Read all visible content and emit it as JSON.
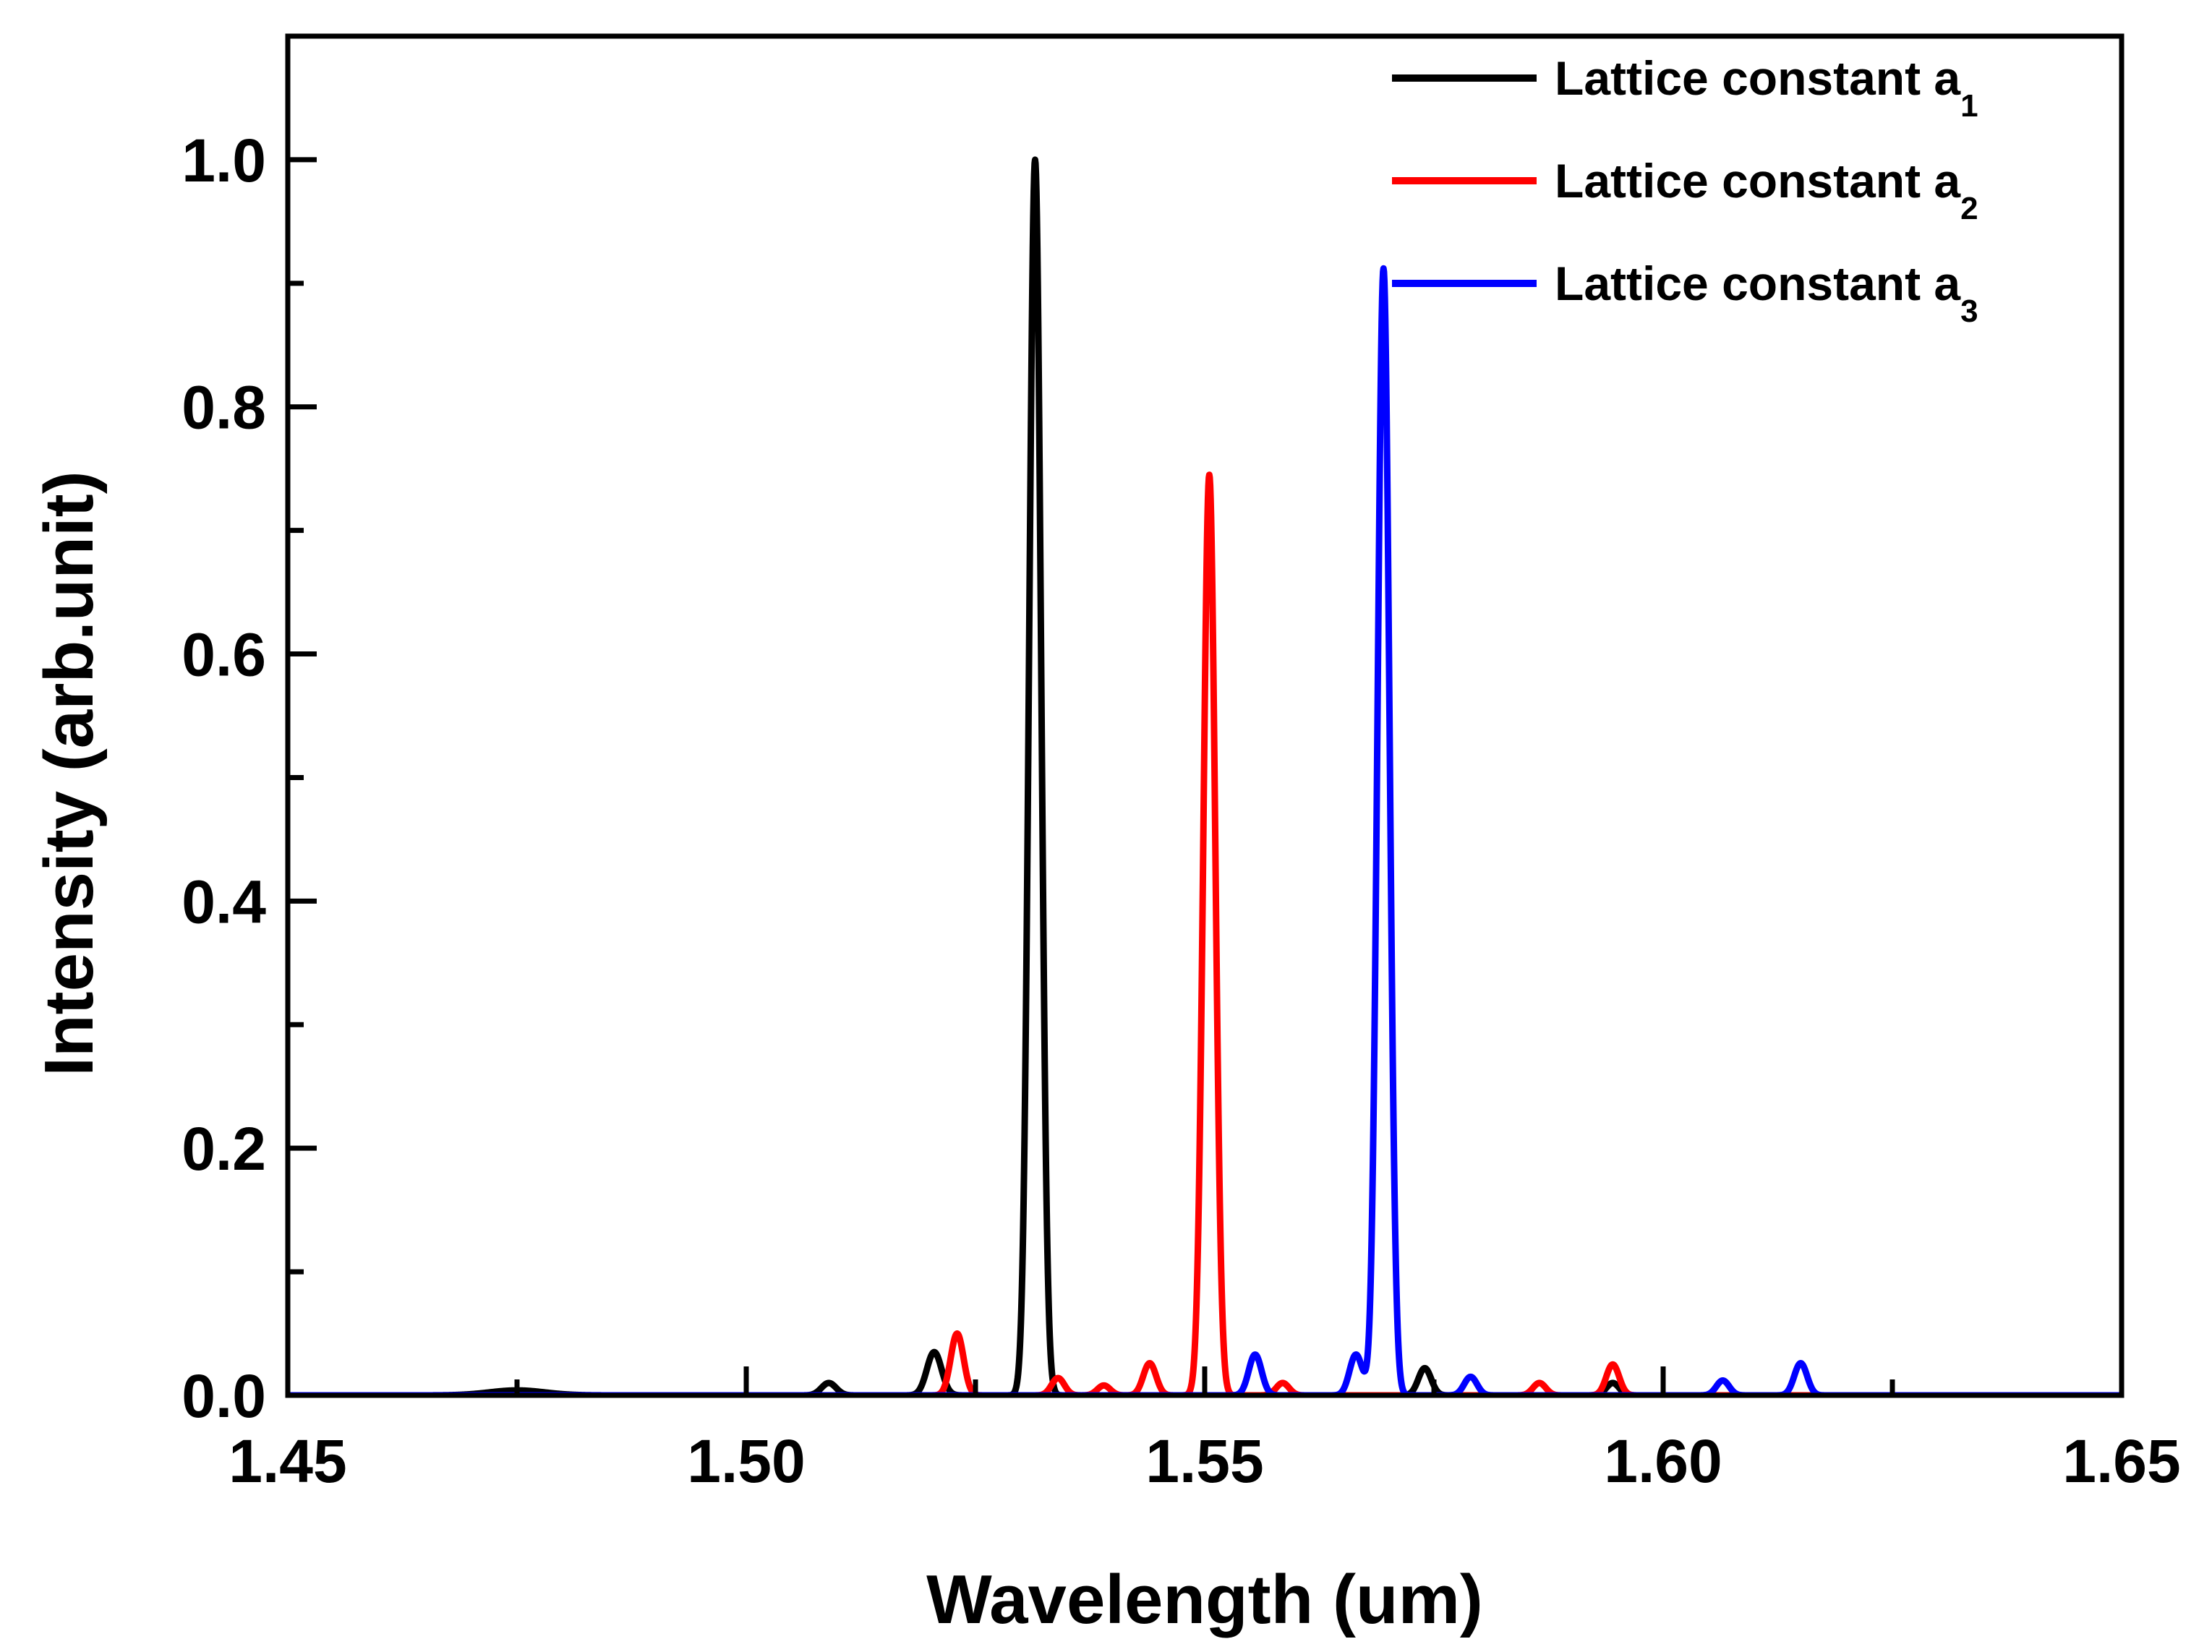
{
  "chart_data": {
    "type": "line",
    "title": "",
    "xlabel": "Wavelength (um)",
    "ylabel": "Intensity (arb.unit)",
    "xlim": [
      1.45,
      1.65
    ],
    "ylim": [
      0.0,
      1.1
    ],
    "xticks": [
      1.45,
      1.5,
      1.55,
      1.6,
      1.65
    ],
    "xtick_labels": [
      "1.45",
      "1.50",
      "1.55",
      "1.60",
      "1.65"
    ],
    "yticks": [
      0.0,
      0.2,
      0.4,
      0.6,
      0.8,
      1.0
    ],
    "ytick_labels": [
      "0.0",
      "0.2",
      "0.4",
      "0.6",
      "0.8",
      "1.0"
    ],
    "legend_position": "top-right",
    "series": [
      {
        "name": "Lattice constant",
        "subscript": "1",
        "color": "#000000",
        "peaks": [
          {
            "x": 1.475,
            "y": 0.004,
            "width": 0.003
          },
          {
            "x": 1.509,
            "y": 0.01,
            "width": 0.0008
          },
          {
            "x": 1.5205,
            "y": 0.035,
            "width": 0.0008
          },
          {
            "x": 1.5315,
            "y": 1.0,
            "width": 0.00065
          },
          {
            "x": 1.574,
            "y": 0.022,
            "width": 0.0007
          },
          {
            "x": 1.5945,
            "y": 0.01,
            "width": 0.0007
          }
        ]
      },
      {
        "name": "Lattice constant",
        "subscript": "2",
        "color": "#ff0000",
        "peaks": [
          {
            "x": 1.523,
            "y": 0.05,
            "width": 0.0007
          },
          {
            "x": 1.534,
            "y": 0.014,
            "width": 0.0007
          },
          {
            "x": 1.539,
            "y": 0.008,
            "width": 0.0007
          },
          {
            "x": 1.544,
            "y": 0.026,
            "width": 0.0007
          },
          {
            "x": 1.5505,
            "y": 0.745,
            "width": 0.00065
          },
          {
            "x": 1.5585,
            "y": 0.01,
            "width": 0.0007
          },
          {
            "x": 1.5865,
            "y": 0.01,
            "width": 0.0007
          },
          {
            "x": 1.5945,
            "y": 0.025,
            "width": 0.0007
          }
        ]
      },
      {
        "name": "Lattice constant",
        "subscript": "3",
        "color": "#0000ff",
        "peaks": [
          {
            "x": 1.5555,
            "y": 0.033,
            "width": 0.0007
          },
          {
            "x": 1.5665,
            "y": 0.033,
            "width": 0.0007
          },
          {
            "x": 1.5695,
            "y": 0.912,
            "width": 0.00065
          },
          {
            "x": 1.579,
            "y": 0.015,
            "width": 0.0007
          },
          {
            "x": 1.6065,
            "y": 0.012,
            "width": 0.0007
          },
          {
            "x": 1.615,
            "y": 0.026,
            "width": 0.0007
          }
        ]
      }
    ]
  }
}
